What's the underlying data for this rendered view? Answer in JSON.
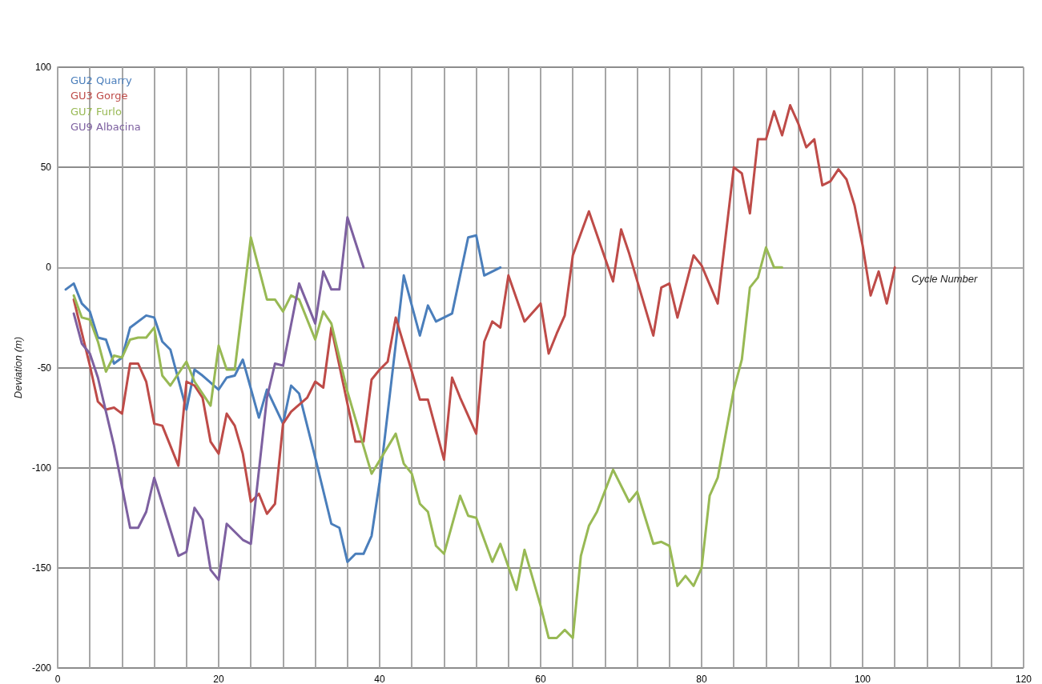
{
  "chart_data": {
    "type": "line",
    "xlabel": "Cycle Number",
    "ylabel": "Deviation (m)",
    "xlim": [
      0,
      120
    ],
    "ylim": [
      -200,
      100
    ],
    "xticks": [
      0,
      {
        "value": 4,
        "label": null
      },
      {
        "value": 8,
        "label": null
      },
      {
        "value": 12,
        "label": null
      },
      {
        "value": 16,
        "label": null
      },
      20,
      {
        "value": 24,
        "label": null
      },
      {
        "value": 28,
        "label": null
      },
      {
        "value": 32,
        "label": null
      },
      {
        "value": 36,
        "label": null
      },
      40,
      {
        "value": 44,
        "label": null
      },
      {
        "value": 48,
        "label": null
      },
      {
        "value": 52,
        "label": null
      },
      {
        "value": 56,
        "label": null
      },
      60,
      {
        "value": 64,
        "label": null
      },
      {
        "value": 68,
        "label": null
      },
      {
        "value": 72,
        "label": null
      },
      {
        "value": 76,
        "label": null
      },
      80,
      {
        "value": 84,
        "label": null
      },
      {
        "value": 88,
        "label": null
      },
      {
        "value": 92,
        "label": null
      },
      {
        "value": 96,
        "label": null
      },
      100,
      {
        "value": 104,
        "label": null
      },
      {
        "value": 108,
        "label": null
      },
      {
        "value": 112,
        "label": null
      },
      {
        "value": 116,
        "label": null
      },
      120
    ],
    "yticks": [
      -200,
      -150,
      -100,
      -50,
      0,
      50,
      100
    ],
    "grid": true,
    "legend": "top left",
    "marker": "none",
    "line_style": "solid",
    "series": [
      {
        "name": "GU2 Quarry",
        "color": "#4a7ebb",
        "x": [
          1,
          2,
          3,
          4,
          5,
          6,
          7,
          8,
          9,
          11,
          12,
          13,
          14,
          16,
          17,
          18,
          20,
          21,
          22,
          23,
          25,
          26,
          28,
          29,
          30,
          32,
          34,
          35,
          36,
          37,
          38,
          39,
          40,
          43,
          45,
          46,
          47,
          49,
          51,
          52,
          53,
          54,
          55
        ],
        "values": [
          -11,
          -8,
          -18,
          -22,
          -35,
          -36,
          -48,
          -45,
          -30,
          -24,
          -25,
          -37,
          -41,
          -71,
          -51,
          -54,
          -61,
          -55,
          -54,
          -46,
          -75,
          -61,
          -78,
          -59,
          -63,
          -95,
          -128,
          -130,
          -147,
          -143,
          -143,
          -134,
          -107,
          -4,
          -34,
          -19,
          -27,
          -23,
          15,
          16,
          -4,
          -2,
          0
        ]
      },
      {
        "name": "GU3 Gorge",
        "color": "#be4b48",
        "x": [
          2,
          4,
          5,
          6,
          7,
          8,
          9,
          10,
          11,
          12,
          13,
          15,
          16,
          17,
          18,
          19,
          20,
          21,
          22,
          23,
          24,
          25,
          26,
          27,
          28,
          29,
          31,
          32,
          33,
          34,
          37,
          38,
          39,
          40,
          41,
          42,
          44,
          45,
          46,
          48,
          49,
          50,
          52,
          53,
          54,
          55,
          56,
          58,
          60,
          61,
          62,
          63,
          64,
          66,
          69,
          70,
          71,
          74,
          75,
          76,
          77,
          79,
          80,
          82,
          84,
          85,
          86,
          87,
          88,
          89,
          90,
          91,
          92,
          93,
          94,
          95,
          96,
          97,
          98,
          99,
          100,
          101,
          102,
          103,
          104
        ],
        "values": [
          -16,
          -49,
          -67,
          -71,
          -70,
          -73,
          -48,
          -48,
          -57,
          -78,
          -79,
          -99,
          -57,
          -59,
          -65,
          -87,
          -93,
          -73,
          -79,
          -93,
          -117,
          -113,
          -123,
          -118,
          -78,
          -72,
          -65,
          -57,
          -60,
          -30,
          -87,
          -87,
          -56,
          -51,
          -47,
          -25,
          -52,
          -66,
          -66,
          -96,
          -55,
          -65,
          -83,
          -37,
          -27,
          -30,
          -4,
          -27,
          -18,
          -43,
          -33,
          -24,
          6,
          28,
          -7,
          19,
          7,
          -34,
          -10,
          -8,
          -25,
          6,
          1,
          -18,
          50,
          47,
          27,
          64,
          64,
          78,
          66,
          81,
          72,
          60,
          64,
          41,
          43,
          49,
          44,
          31,
          11,
          -14,
          -2,
          -18,
          0
        ]
      },
      {
        "name": "GU7 Furlo",
        "color": "#98b954",
        "x": [
          2,
          3,
          4,
          5,
          6,
          7,
          8,
          9,
          10,
          11,
          12,
          13,
          14,
          16,
          17,
          19,
          20,
          21,
          22,
          24,
          26,
          27,
          28,
          29,
          30,
          32,
          33,
          34,
          36,
          39,
          42,
          43,
          44,
          45,
          46,
          47,
          48,
          50,
          51,
          52,
          54,
          55,
          57,
          58,
          60,
          61,
          62,
          63,
          64,
          65,
          66,
          67,
          69,
          71,
          72,
          74,
          75,
          76,
          77,
          78,
          79,
          80,
          81,
          82,
          84,
          85,
          86,
          87,
          88,
          89,
          90
        ],
        "values": [
          -14,
          -25,
          -26,
          -37,
          -52,
          -44,
          -45,
          -36,
          -35,
          -35,
          -30,
          -54,
          -59,
          -47,
          -57,
          -69,
          -39,
          -51,
          -51,
          15,
          -16,
          -16,
          -22,
          -14,
          -16,
          -36,
          -22,
          -28,
          -62,
          -103,
          -83,
          -98,
          -103,
          -118,
          -122,
          -139,
          -143,
          -114,
          -124,
          -125,
          -147,
          -138,
          -161,
          -141,
          -169,
          -185,
          -185,
          -181,
          -185,
          -144,
          -129,
          -122,
          -101,
          -117,
          -112,
          -138,
          -137,
          -139,
          -159,
          -154,
          -159,
          -150,
          -114,
          -105,
          -61,
          -46,
          -10,
          -5,
          10,
          0,
          0
        ]
      },
      {
        "name": "GU9 Albacina",
        "color": "#7d60a0",
        "x": [
          2,
          3,
          4,
          5,
          7,
          9,
          10,
          11,
          12,
          13,
          15,
          16,
          17,
          18,
          19,
          20,
          21,
          23,
          24,
          26,
          27,
          28,
          30,
          32,
          33,
          34,
          35,
          36,
          38
        ],
        "values": [
          -23,
          -38,
          -43,
          -55,
          -89,
          -130,
          -130,
          -122,
          -105,
          -118,
          -144,
          -142,
          -120,
          -126,
          -151,
          -156,
          -128,
          -136,
          -138,
          -65,
          -48,
          -49,
          -8,
          -28,
          -2,
          -11,
          -11,
          25,
          0
        ]
      }
    ]
  }
}
